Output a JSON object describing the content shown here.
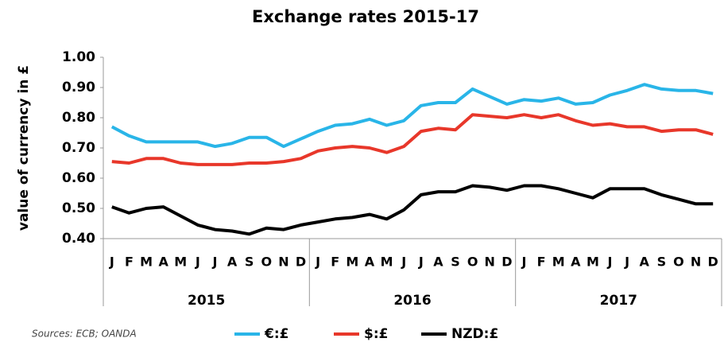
{
  "chart_data": {
    "type": "line",
    "title": "Exchange rates 2015-17",
    "y_label": "value of currency in £",
    "source": "Sources: ECB; OANDA",
    "categories": [
      "J",
      "F",
      "M",
      "A",
      "M",
      "J",
      "J",
      "A",
      "S",
      "O",
      "N",
      "D",
      "J",
      "F",
      "M",
      "A",
      "M",
      "J",
      "J",
      "A",
      "S",
      "O",
      "N",
      "D",
      "J",
      "F",
      "M",
      "A",
      "M",
      "J",
      "J",
      "A",
      "S",
      "O",
      "N",
      "D"
    ],
    "groups": [
      "2015",
      "2016",
      "2017"
    ],
    "series": [
      {
        "name": "€:£",
        "color": "#29b5e8",
        "values": [
          0.77,
          0.74,
          0.72,
          0.72,
          0.72,
          0.72,
          0.705,
          0.715,
          0.735,
          0.735,
          0.705,
          0.73,
          0.755,
          0.775,
          0.78,
          0.795,
          0.775,
          0.79,
          0.84,
          0.85,
          0.85,
          0.895,
          0.87,
          0.845,
          0.86,
          0.855,
          0.865,
          0.845,
          0.85,
          0.875,
          0.89,
          0.91,
          0.895,
          0.89,
          0.89,
          0.88
        ]
      },
      {
        "name": "$:£",
        "color": "#e8372a",
        "values": [
          0.655,
          0.65,
          0.665,
          0.665,
          0.65,
          0.645,
          0.645,
          0.645,
          0.65,
          0.65,
          0.655,
          0.665,
          0.69,
          0.7,
          0.705,
          0.7,
          0.685,
          0.705,
          0.755,
          0.765,
          0.76,
          0.81,
          0.805,
          0.8,
          0.81,
          0.8,
          0.81,
          0.79,
          0.775,
          0.78,
          0.77,
          0.77,
          0.755,
          0.76,
          0.76,
          0.745
        ]
      },
      {
        "name": "NZD:£",
        "color": "#000000",
        "values": [
          0.505,
          0.485,
          0.5,
          0.505,
          0.475,
          0.445,
          0.43,
          0.425,
          0.415,
          0.435,
          0.43,
          0.445,
          0.455,
          0.465,
          0.47,
          0.48,
          0.465,
          0.495,
          0.545,
          0.555,
          0.555,
          0.575,
          0.57,
          0.56,
          0.575,
          0.575,
          0.565,
          0.55,
          0.535,
          0.565,
          0.565,
          0.565,
          0.545,
          0.53,
          0.515,
          0.515
        ]
      }
    ],
    "ylim": [
      0.4,
      1.0
    ],
    "yticks": [
      {
        "value": 0.4,
        "label": "0.40"
      },
      {
        "value": 0.5,
        "label": "0.50"
      },
      {
        "value": 0.6,
        "label": "0.60"
      },
      {
        "value": 0.7,
        "label": "0.70"
      },
      {
        "value": 0.8,
        "label": "0.80"
      },
      {
        "value": 0.9,
        "label": "0.90"
      },
      {
        "value": 1.0,
        "label": "1.00"
      }
    ],
    "grid": false
  }
}
